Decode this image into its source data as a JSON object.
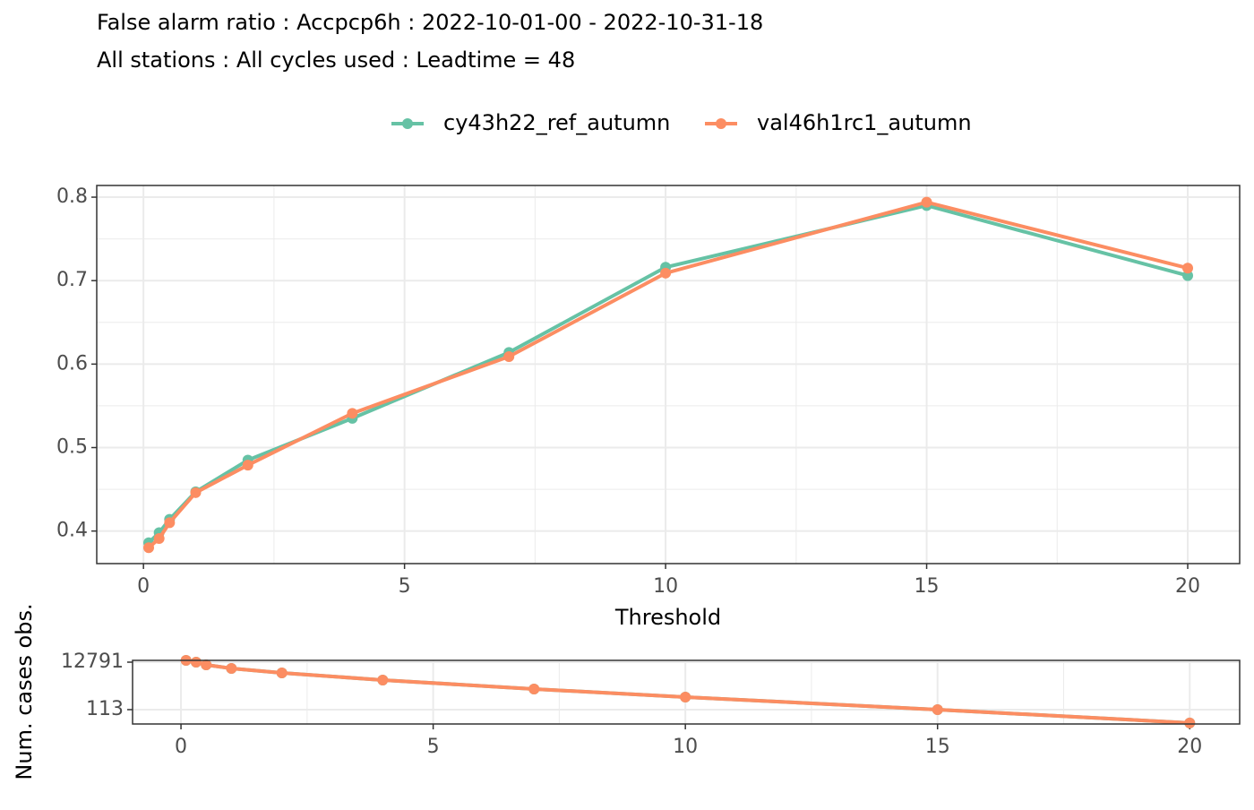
{
  "chart_data": [
    {
      "type": "line",
      "title": "False alarm ratio : Accpcp6h : 2022-10-01-00 - 2022-10-31-18",
      "subtitle": "All stations : All cycles used : Leadtime = 48",
      "x_label": "Threshold",
      "x": [
        0.1,
        0.3,
        0.5,
        1,
        2,
        4,
        7,
        10,
        15,
        20
      ],
      "series": [
        {
          "name": "cy43h22_ref_autumn",
          "color": "#66c2a5",
          "values": [
            0.386,
            0.398,
            0.414,
            0.447,
            0.485,
            0.535,
            0.614,
            0.716,
            0.79,
            0.706
          ]
        },
        {
          "name": "val46h1rc1_autumn",
          "color": "#fc8d62",
          "values": [
            0.38,
            0.391,
            0.41,
            0.446,
            0.479,
            0.541,
            0.609,
            0.709,
            0.794,
            0.715
          ]
        }
      ],
      "xlim": [
        -0.895,
        20.995
      ],
      "xticks": [
        0,
        5,
        10,
        15,
        20
      ],
      "ylim": [
        0.361,
        0.814
      ],
      "yticks": [
        0.4,
        0.5,
        0.6,
        0.7,
        0.8
      ],
      "grid": true,
      "minor_grid": true,
      "legend": "top"
    },
    {
      "type": "line",
      "y_label": "Num. cases obs.",
      "x": [
        0.1,
        0.3,
        0.5,
        1,
        2,
        4,
        7,
        10,
        15,
        20
      ],
      "series": [
        {
          "name": "cy43h22_ref_autumn",
          "color": "#66c2a5",
          "values": [
            15300,
            12791,
            9800,
            6860,
            4390,
            2150,
            880,
            394,
            113,
            30
          ]
        },
        {
          "name": "val46h1rc1_autumn",
          "color": "#fc8d62",
          "values": [
            15300,
            12791,
            9800,
            6860,
            4390,
            2150,
            880,
            394,
            113,
            30
          ]
        }
      ],
      "xlim": [
        -0.96,
        20.99
      ],
      "xticks": [
        0,
        5,
        10,
        15,
        20
      ],
      "ylim": [
        27,
        15300
      ],
      "yticks": [
        113,
        12791
      ],
      "log_y": true,
      "grid": true,
      "minor_grid": true
    }
  ]
}
